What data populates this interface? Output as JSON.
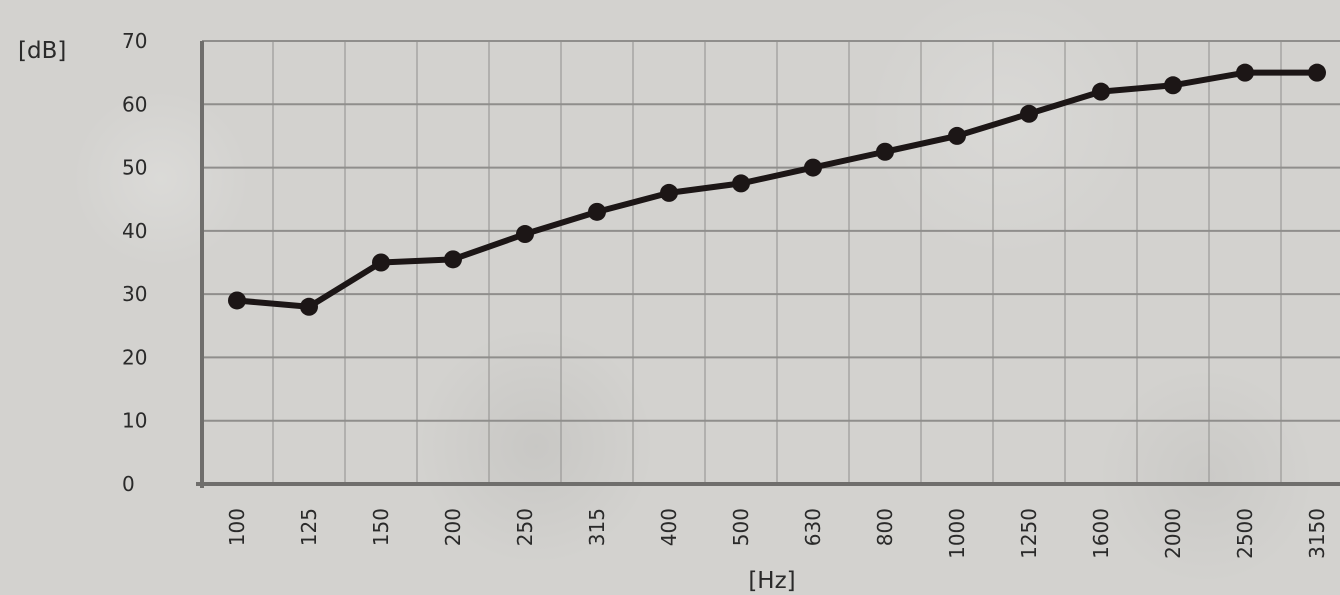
{
  "chart_data": {
    "type": "line",
    "title": "",
    "ylabel": "[dB]",
    "xlabel": "[Hz]",
    "ylim": [
      0,
      70
    ],
    "yticks": [
      0,
      10,
      20,
      30,
      40,
      50,
      60,
      70
    ],
    "categories": [
      "100",
      "125",
      "150",
      "200",
      "250",
      "315",
      "400",
      "500",
      "630",
      "800",
      "1000",
      "1250",
      "1600",
      "2000",
      "2500",
      "3150"
    ],
    "series": [
      {
        "values": [
          29,
          28,
          35,
          35.5,
          39.5,
          43,
          46,
          47.5,
          50,
          52.5,
          55,
          58.5,
          62,
          63,
          65,
          65
        ]
      }
    ],
    "grid": true,
    "legend": "none",
    "line_color": "#1c1616",
    "grid_color": "#8f8e8c",
    "axis_color": "#6f6e6c"
  }
}
